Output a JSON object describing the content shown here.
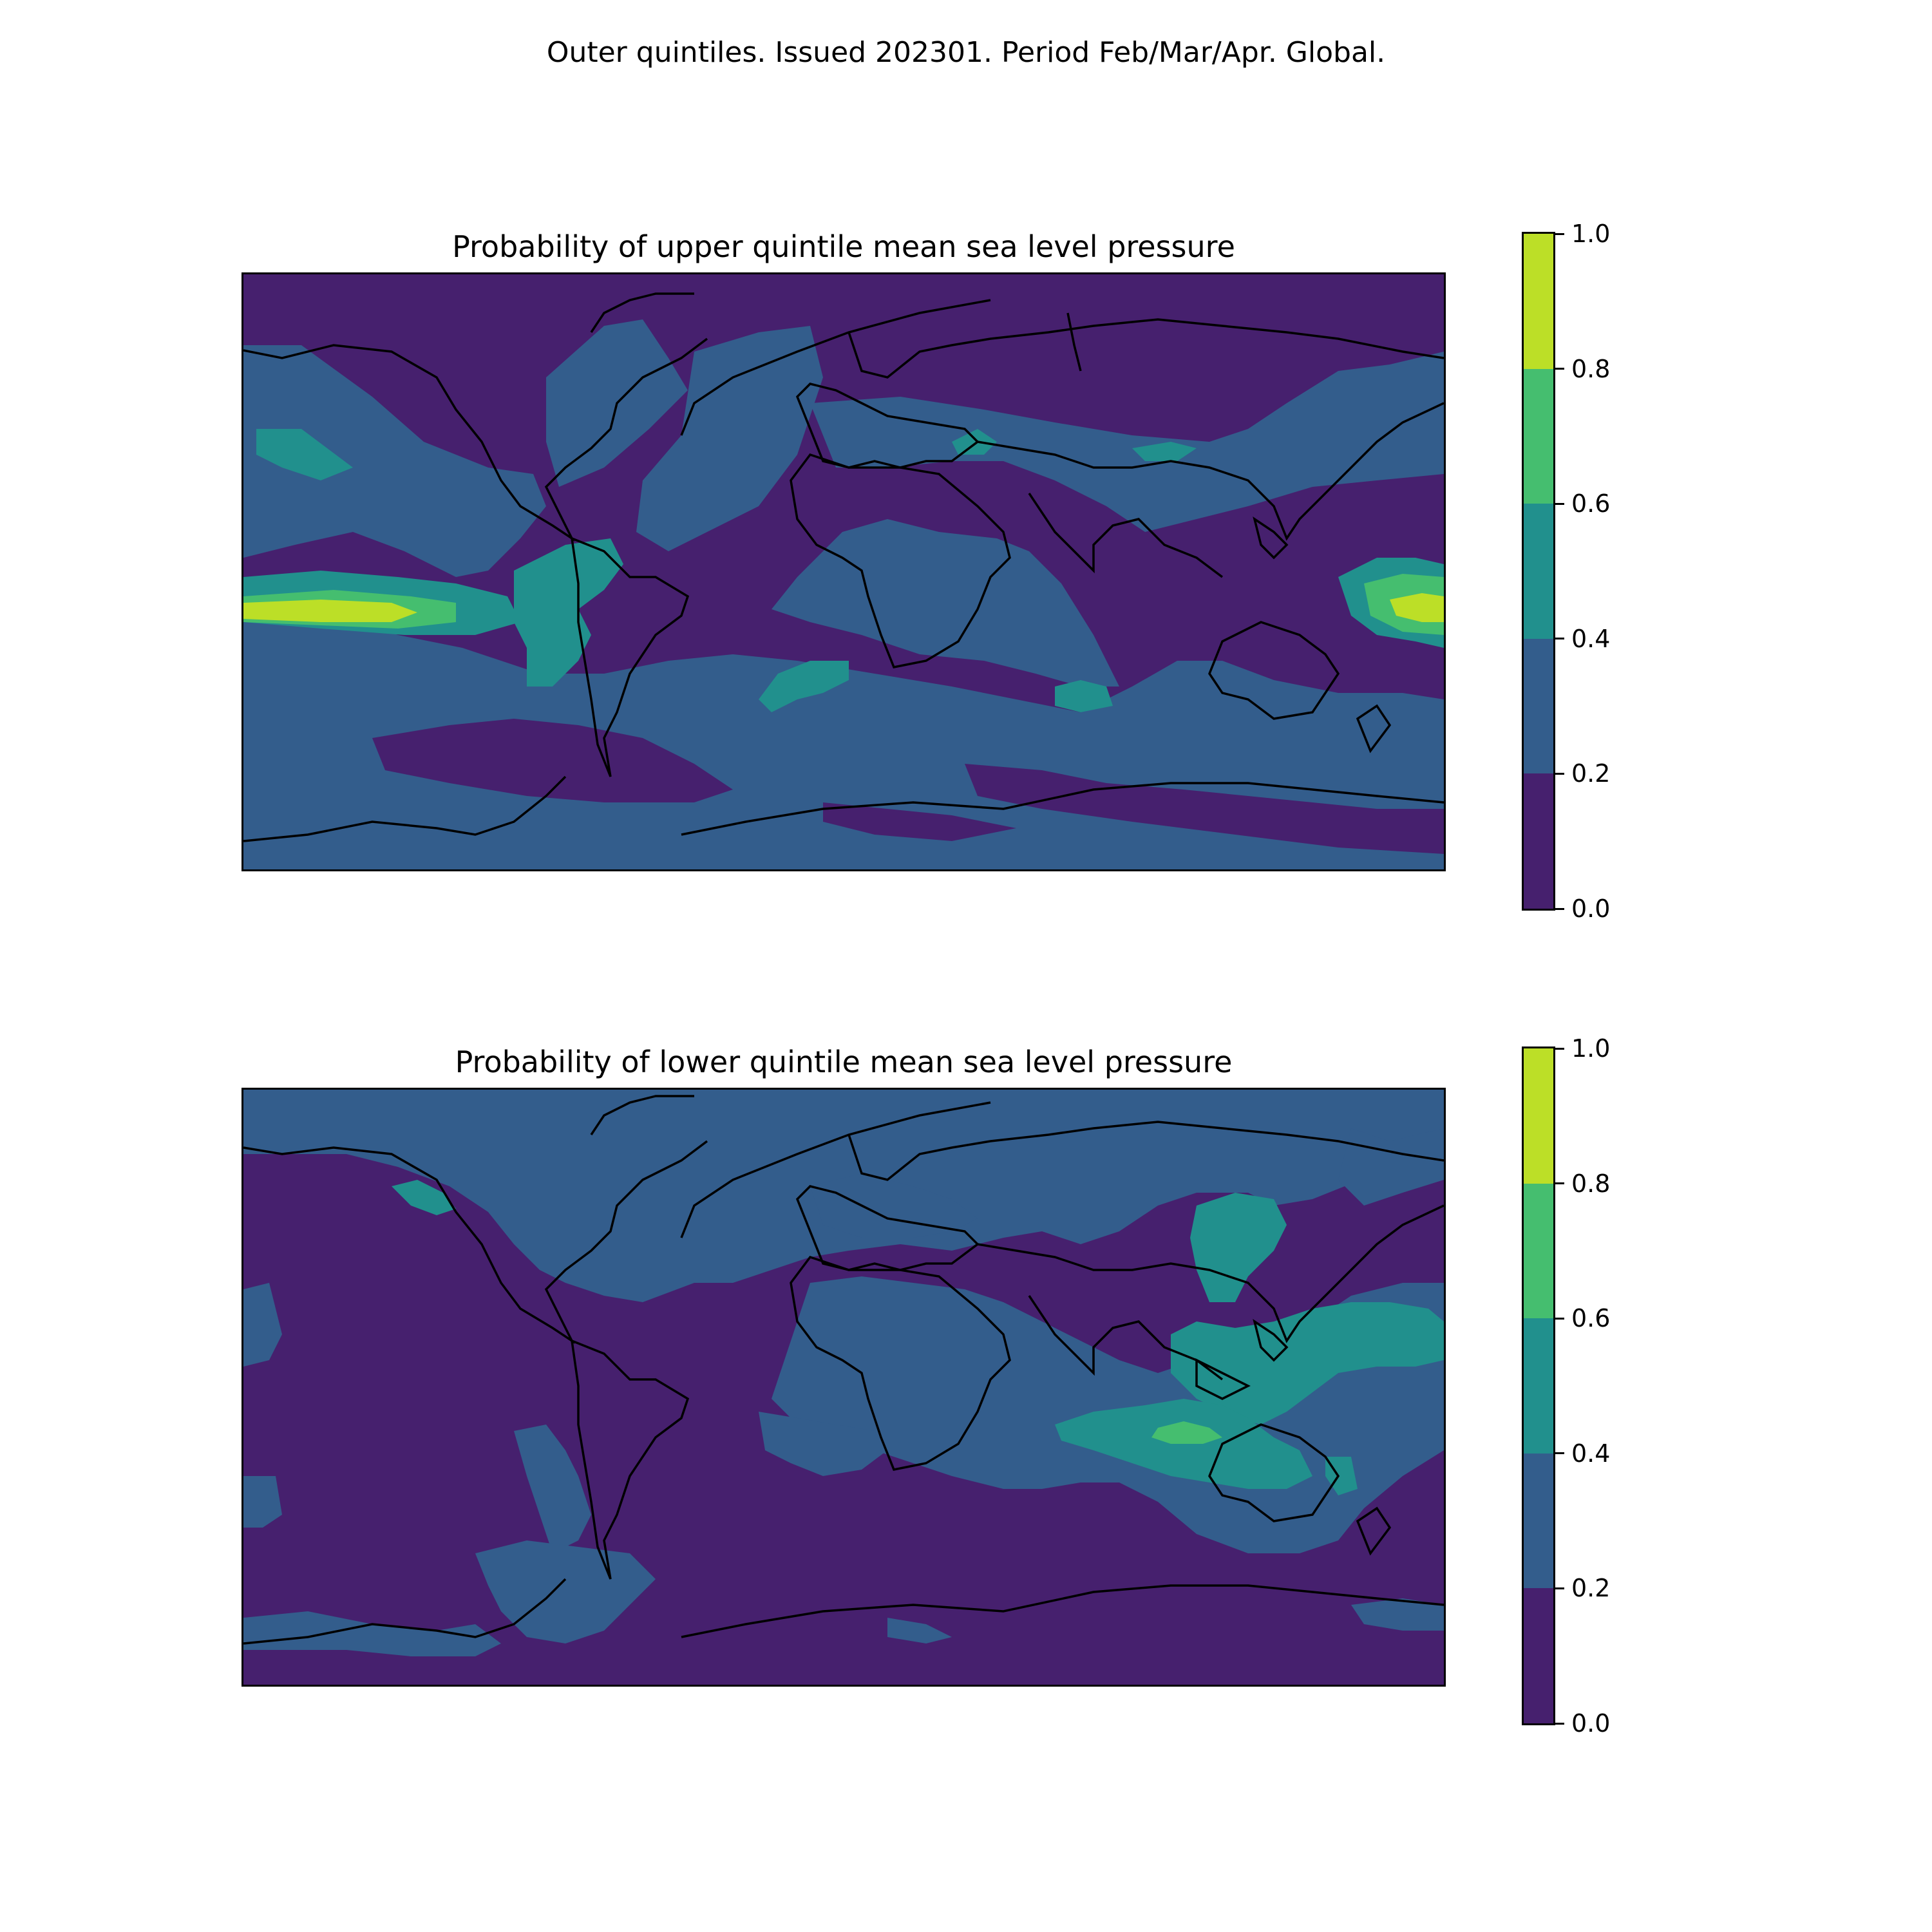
{
  "figure": {
    "suptitle": "Outer quintiles. Issued 202301. Period Feb/Mar/Apr. Global."
  },
  "palette": [
    "#46206e",
    "#335d8c",
    "#21908d",
    "#45be6f",
    "#bcdf27"
  ],
  "coastline_color": "#000000",
  "chart_data": [
    {
      "type": "heatmap",
      "title": "Probability of upper quintile mean sea level pressure",
      "projection": "global lat/lon",
      "legend_placement": "right",
      "colorbar": {
        "levels": [
          0.0,
          0.2,
          0.4,
          0.6,
          0.8,
          1.0
        ],
        "tick_labels": [
          "0.0",
          "0.2",
          "0.4",
          "0.6",
          "0.8",
          "1.0"
        ]
      },
      "background_level": 0.1
    },
    {
      "type": "heatmap",
      "title": "Probability of lower quintile mean sea level pressure",
      "projection": "global lat/lon",
      "legend_placement": "right",
      "colorbar": {
        "levels": [
          0.0,
          0.2,
          0.4,
          0.6,
          0.8,
          1.0
        ],
        "tick_labels": [
          "0.0",
          "0.2",
          "0.4",
          "0.6",
          "0.8",
          "1.0"
        ]
      },
      "background_level": 0.1
    }
  ]
}
